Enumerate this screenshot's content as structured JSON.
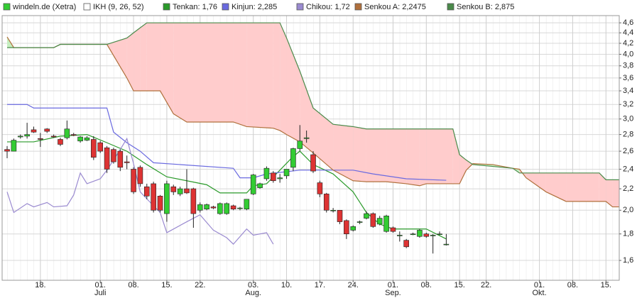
{
  "chart_data": {
    "type": "ichimoku",
    "log": true,
    "grid": true,
    "xlim": [
      -0.75,
      92
    ],
    "ylim": [
      1.465,
      4.75
    ],
    "yticks": [
      {
        "value": 1.6,
        "label": "1,6"
      },
      {
        "value": 1.8,
        "label": "1,8"
      },
      {
        "value": 2.0,
        "label": "2,0"
      },
      {
        "value": 2.2,
        "label": "2,2"
      },
      {
        "value": 2.4,
        "label": "2,4"
      },
      {
        "value": 2.6,
        "label": "2,6"
      },
      {
        "value": 2.8,
        "label": "2,8"
      },
      {
        "value": 3.0,
        "label": "3,0"
      },
      {
        "value": 3.2,
        "label": "3,2"
      },
      {
        "value": 3.4,
        "label": "3,4"
      },
      {
        "value": 3.6,
        "label": "3,6"
      },
      {
        "value": 3.8,
        "label": "3,8"
      },
      {
        "value": 4.0,
        "label": "4,0"
      },
      {
        "value": 4.2,
        "label": "4,2"
      },
      {
        "value": 4.4,
        "label": "4,4"
      },
      {
        "value": 4.6,
        "label": "4,6"
      }
    ],
    "xticks": [
      {
        "value": 5,
        "label": "18."
      },
      {
        "value": 14,
        "label": "01."
      },
      {
        "value": 19,
        "label": "08."
      },
      {
        "value": 24,
        "label": "15."
      },
      {
        "value": 29,
        "label": "22."
      },
      {
        "value": 37,
        "label": "03."
      },
      {
        "value": 42,
        "label": "10."
      },
      {
        "value": 47,
        "label": "17."
      },
      {
        "value": 52,
        "label": "24."
      },
      {
        "value": 58,
        "label": "01."
      },
      {
        "value": 63,
        "label": "08."
      },
      {
        "value": 68,
        "label": "15."
      },
      {
        "value": 72,
        "label": "22."
      },
      {
        "value": 80,
        "label": "01."
      },
      {
        "value": 85,
        "label": "08."
      },
      {
        "value": 90,
        "label": "15."
      }
    ],
    "month_labels": [
      {
        "value": 14,
        "label": "Juli"
      },
      {
        "value": 37,
        "label": "Aug."
      },
      {
        "value": 58,
        "label": "Sep."
      },
      {
        "value": 80,
        "label": "Okt."
      }
    ],
    "indicator_label": "IKH (9, 26, 52)",
    "cloud_colors": {
      "bullish": "#c6efc0",
      "bearish": "#ffcccc"
    },
    "candles": {
      "name": "windeln.de (Xetra)",
      "up_color": "#33cc33",
      "down_color": "#dd3333",
      "open": [
        2.62,
        2.6,
        2.77,
        2.78,
        2.86,
        2.75,
        2.87,
        2.78,
        2.74,
        2.76,
        2.8,
        2.72,
        2.73,
        2.74,
        2.7,
        2.64,
        2.62,
        2.6,
        2.48,
        2.4,
        2.42,
        2.22,
        2.25,
        2.13,
        1.97,
        2.22,
        2.15,
        2.2,
        2.2,
        2.0,
        2.01,
        2.03,
        1.97,
        1.97,
        2.04,
        2.02,
        2.01,
        2.15,
        2.21,
        2.3,
        2.36,
        2.3,
        2.33,
        2.42,
        2.63,
        2.75,
        2.56,
        2.26,
        2.15,
        2.0,
        2.0,
        1.91,
        1.83,
        1.9,
        1.93,
        1.97,
        1.88,
        1.82,
        1.85,
        1.79,
        1.75,
        1.8,
        1.78,
        1.8,
        1.79,
        1.8,
        1.72
      ],
      "high": [
        2.66,
        2.75,
        2.8,
        2.95,
        2.9,
        2.82,
        2.88,
        2.8,
        2.76,
        2.98,
        2.82,
        2.78,
        2.78,
        2.78,
        2.72,
        2.66,
        2.64,
        2.62,
        2.55,
        2.42,
        2.44,
        2.25,
        2.27,
        2.14,
        2.28,
        2.24,
        2.22,
        2.4,
        2.21,
        2.07,
        2.06,
        2.04,
        2.07,
        2.07,
        2.05,
        2.03,
        2.1,
        2.35,
        2.26,
        2.43,
        2.38,
        2.35,
        2.4,
        2.64,
        2.92,
        2.85,
        2.6,
        2.28,
        2.16,
        2.02,
        2.0,
        1.92,
        1.87,
        1.91,
        1.99,
        1.98,
        1.95,
        1.96,
        1.86,
        1.82,
        1.76,
        1.81,
        1.84,
        1.81,
        1.8,
        1.82,
        1.8
      ],
      "low": [
        2.52,
        2.6,
        2.75,
        2.75,
        2.82,
        2.65,
        2.82,
        2.76,
        2.66,
        2.74,
        2.78,
        2.7,
        2.72,
        2.5,
        2.58,
        2.36,
        2.46,
        2.38,
        2.4,
        2.15,
        2.22,
        2.1,
        1.98,
        1.98,
        1.9,
        2.14,
        2.13,
        2.15,
        1.85,
        1.98,
        2.0,
        2.01,
        1.96,
        1.96,
        2.0,
        2.0,
        2.0,
        2.14,
        2.2,
        2.28,
        2.26,
        2.26,
        2.3,
        2.38,
        2.6,
        2.7,
        2.36,
        2.12,
        1.98,
        1.98,
        1.88,
        1.76,
        1.82,
        1.88,
        1.92,
        1.85,
        1.87,
        1.81,
        1.81,
        1.74,
        1.69,
        1.79,
        1.77,
        1.77,
        1.65,
        1.79,
        1.71
      ],
      "close": [
        2.6,
        2.73,
        2.78,
        2.8,
        2.83,
        2.74,
        2.84,
        2.77,
        2.68,
        2.87,
        2.79,
        2.77,
        2.76,
        2.53,
        2.6,
        2.4,
        2.48,
        2.42,
        2.47,
        2.17,
        2.25,
        2.13,
        2.0,
        2.0,
        2.25,
        2.17,
        2.2,
        2.16,
        1.97,
        2.05,
        2.05,
        2.02,
        2.06,
        2.06,
        2.01,
        2.02,
        2.1,
        2.34,
        2.25,
        2.41,
        2.28,
        2.31,
        2.4,
        2.63,
        2.72,
        2.76,
        2.38,
        2.15,
        2.0,
        2.0,
        1.9,
        1.8,
        1.86,
        1.9,
        1.97,
        1.86,
        1.93,
        1.95,
        1.82,
        1.79,
        1.7,
        1.8,
        1.83,
        1.78,
        1.79,
        1.8,
        1.72
      ]
    },
    "series": [
      {
        "name": "Tenkan: 1,76",
        "color": "#2a9a2a",
        "x": [
          0,
          4,
          8,
          12,
          15,
          18,
          21,
          24,
          27,
          30,
          32,
          36,
          37,
          39,
          41,
          43,
          44,
          46,
          49,
          52,
          54,
          56,
          58,
          63,
          66
        ],
        "values": [
          2.71,
          2.71,
          2.78,
          2.8,
          2.7,
          2.6,
          2.45,
          2.32,
          2.28,
          2.24,
          2.16,
          2.16,
          2.23,
          2.25,
          2.39,
          2.54,
          2.6,
          2.45,
          2.35,
          2.17,
          1.98,
          1.88,
          1.84,
          1.84,
          1.76
        ]
      },
      {
        "name": "Kinjun: 2,285",
        "color": "#6a6ae0",
        "x": [
          0,
          3,
          4,
          15,
          16,
          18,
          20,
          22,
          26,
          34,
          35,
          37,
          39,
          44,
          52,
          55,
          60,
          66
        ],
        "values": [
          3.2,
          3.2,
          3.15,
          3.15,
          2.83,
          2.7,
          2.6,
          2.47,
          2.45,
          2.41,
          2.31,
          2.31,
          2.35,
          2.39,
          2.39,
          2.35,
          2.3,
          2.285
        ]
      },
      {
        "name": "Chikou: 1,72",
        "color": "#9a8ad0",
        "x": [
          0,
          1,
          3,
          4,
          6,
          7,
          9,
          10,
          11,
          12,
          14,
          15,
          16,
          17,
          18,
          19,
          20,
          22,
          23,
          24,
          27,
          29,
          31,
          33,
          34,
          36,
          37,
          39,
          40
        ],
        "values": [
          2.17,
          1.98,
          2.06,
          2.03,
          2.07,
          2.03,
          2.04,
          2.14,
          2.36,
          2.25,
          2.3,
          2.39,
          2.5,
          2.62,
          2.75,
          2.46,
          2.17,
          2.04,
          1.98,
          1.81,
          1.9,
          1.96,
          1.83,
          1.77,
          1.72,
          1.84,
          1.79,
          1.81,
          1.72
        ]
      },
      {
        "name": "Senkou A: 2,2475",
        "color": "#b0703c",
        "cloud": "a",
        "x": [
          0,
          1,
          2,
          7,
          8,
          15,
          18,
          19,
          20,
          21,
          23,
          25,
          27,
          34,
          36,
          40,
          41,
          42,
          44,
          46,
          49,
          52,
          54,
          57,
          60,
          62,
          63,
          67,
          68,
          69,
          70,
          73,
          76,
          77,
          78,
          81,
          84,
          89,
          90,
          91,
          92
        ],
        "values": [
          4.32,
          4.12,
          4.12,
          4.12,
          4.18,
          4.18,
          3.6,
          3.4,
          3.4,
          3.4,
          3.4,
          3.07,
          2.96,
          2.96,
          2.9,
          2.88,
          2.85,
          2.8,
          2.71,
          2.58,
          2.39,
          2.28,
          2.27,
          2.27,
          2.25,
          2.23,
          2.25,
          2.25,
          2.25,
          2.39,
          2.46,
          2.45,
          2.41,
          2.4,
          2.31,
          2.17,
          2.08,
          2.08,
          2.08,
          2.03,
          2.03
        ]
      },
      {
        "name": "Senkou B: 2,875",
        "color": "#4a8a4a",
        "cloud": "b",
        "x": [
          0,
          1,
          2,
          7,
          8,
          15,
          18,
          19,
          20,
          21,
          23,
          25,
          27,
          34,
          36,
          40,
          41,
          42,
          44,
          46,
          49,
          52,
          54,
          57,
          60,
          62,
          63,
          67,
          68,
          69,
          70,
          73,
          76,
          77,
          78,
          81,
          84,
          89,
          90,
          91,
          92
        ],
        "values": [
          4.12,
          4.12,
          4.12,
          4.12,
          4.18,
          4.18,
          4.3,
          4.4,
          4.5,
          4.6,
          4.6,
          4.6,
          4.6,
          4.6,
          4.6,
          4.6,
          4.6,
          4.3,
          3.71,
          3.15,
          2.93,
          2.9,
          2.87,
          2.87,
          2.87,
          2.87,
          2.87,
          2.87,
          2.56,
          2.5,
          2.45,
          2.43,
          2.41,
          2.36,
          2.36,
          2.36,
          2.36,
          2.36,
          2.29,
          2.29,
          2.29
        ]
      }
    ]
  }
}
